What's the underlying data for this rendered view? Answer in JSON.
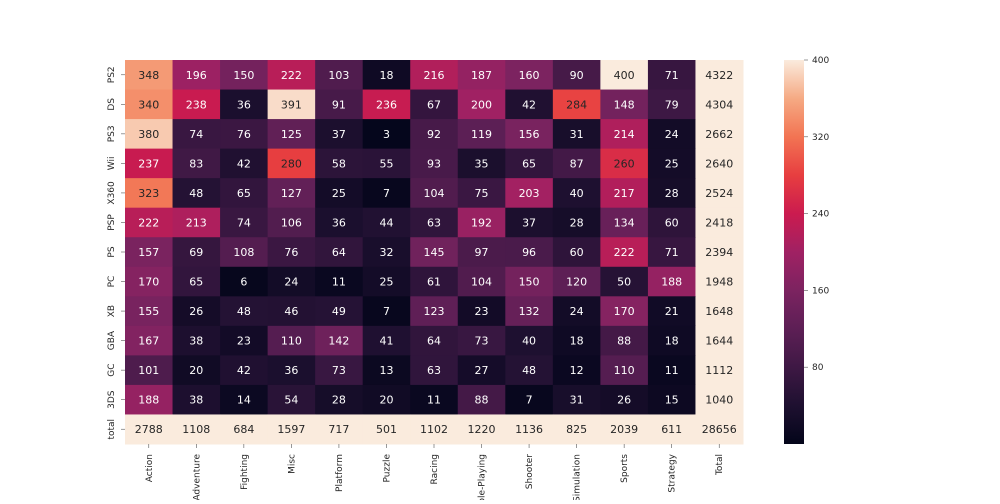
{
  "chart_data": {
    "type": "heatmap",
    "x_categories": [
      "Action",
      "Adventure",
      "Fighting",
      "Misc",
      "Platform",
      "Puzzle",
      "Racing",
      "Role-Playing",
      "Shooter",
      "Simulation",
      "Sports",
      "Strategy",
      "Total"
    ],
    "y_categories": [
      "PS2",
      "DS",
      "PS3",
      "Wii",
      "X360",
      "PSP",
      "PS",
      "PC",
      "XB",
      "GBA",
      "GC",
      "3DS",
      "total"
    ],
    "values": [
      [
        348,
        196,
        150,
        222,
        103,
        18,
        216,
        187,
        160,
        90,
        400,
        71,
        4322
      ],
      [
        340,
        238,
        36,
        391,
        91,
        236,
        67,
        200,
        42,
        284,
        148,
        79,
        4304
      ],
      [
        380,
        74,
        76,
        125,
        37,
        3,
        92,
        119,
        156,
        31,
        214,
        24,
        2662
      ],
      [
        237,
        83,
        42,
        280,
        58,
        55,
        93,
        35,
        65,
        87,
        260,
        25,
        2640
      ],
      [
        323,
        48,
        65,
        127,
        25,
        7,
        104,
        75,
        203,
        40,
        217,
        28,
        2524
      ],
      [
        222,
        213,
        74,
        106,
        36,
        44,
        63,
        192,
        37,
        28,
        134,
        60,
        2418
      ],
      [
        157,
        69,
        108,
        76,
        64,
        32,
        145,
        97,
        96,
        60,
        222,
        71,
        2394
      ],
      [
        170,
        65,
        6,
        24,
        11,
        25,
        61,
        104,
        150,
        120,
        50,
        188,
        1948
      ],
      [
        155,
        26,
        48,
        46,
        49,
        7,
        123,
        23,
        132,
        24,
        170,
        21,
        1648
      ],
      [
        167,
        38,
        23,
        110,
        142,
        41,
        64,
        73,
        40,
        18,
        88,
        18,
        1644
      ],
      [
        101,
        20,
        42,
        36,
        73,
        13,
        63,
        27,
        48,
        12,
        110,
        11,
        1112
      ],
      [
        188,
        38,
        14,
        54,
        28,
        20,
        11,
        88,
        7,
        31,
        26,
        15,
        1040
      ],
      [
        2788,
        1108,
        684,
        1597,
        717,
        501,
        1102,
        1220,
        1136,
        825,
        2039,
        611,
        28656
      ]
    ],
    "colorbar": {
      "min": 0,
      "max": 400,
      "ticks": [
        80,
        160,
        240,
        320,
        400
      ],
      "colormap": "rocket"
    },
    "annotations": true
  }
}
